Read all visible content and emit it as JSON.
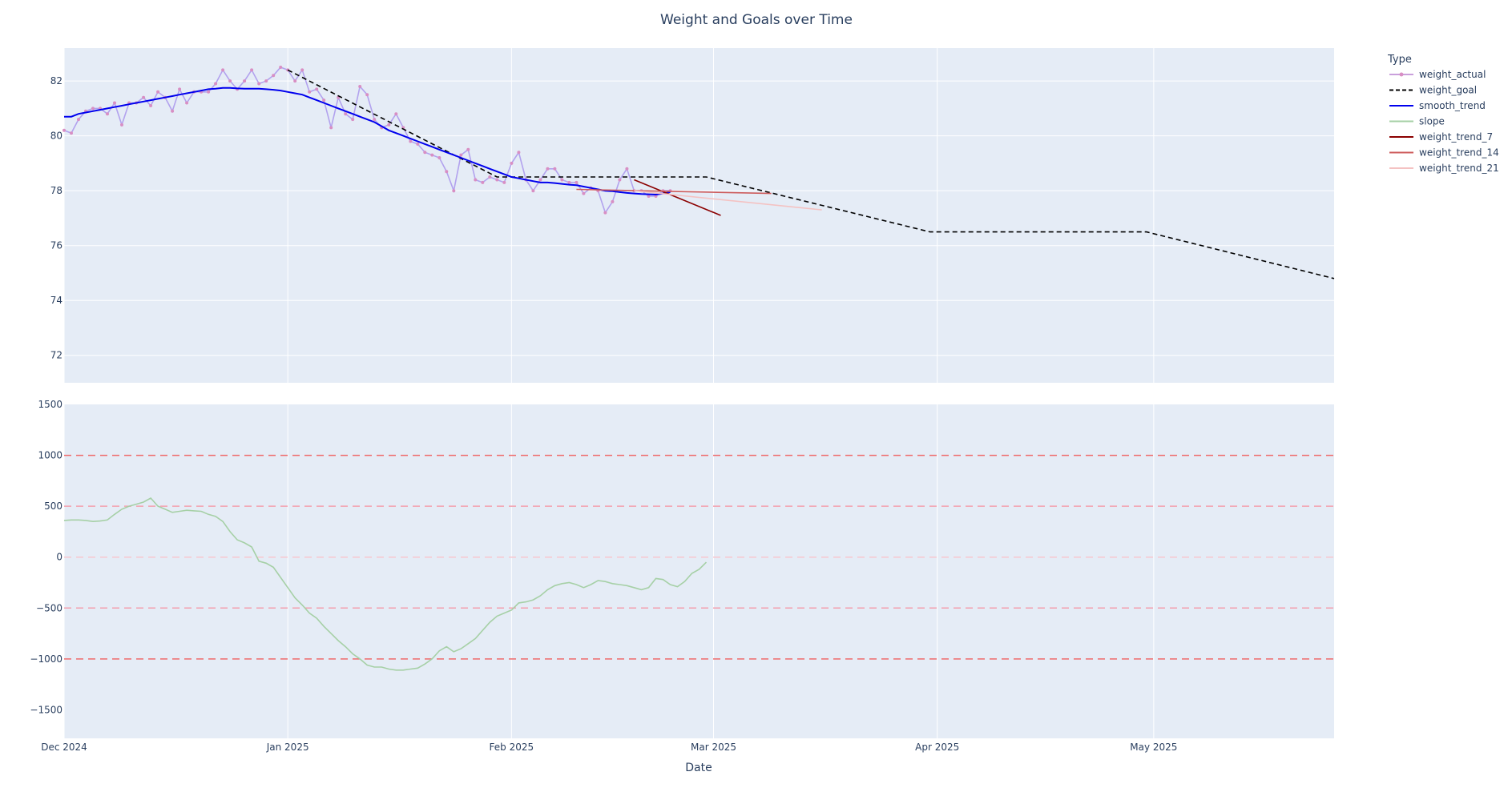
{
  "chart_data": {
    "title": "Weight and Goals over Time",
    "xlabel": "Date",
    "x_range": [
      "2024-12-01",
      "2025-05-26"
    ],
    "x_ticks": [
      {
        "date": "2024-12-01",
        "label": "Dec 2024"
      },
      {
        "date": "2025-01-01",
        "label": "Jan 2025"
      },
      {
        "date": "2025-02-01",
        "label": "Feb 2025"
      },
      {
        "date": "2025-03-01",
        "label": "Mar 2025"
      },
      {
        "date": "2025-04-01",
        "label": "Apr 2025"
      },
      {
        "date": "2025-05-01",
        "label": "May 2025"
      }
    ],
    "legend": {
      "title": "Type",
      "placement": "right",
      "items": [
        {
          "name": "weight_actual",
          "color": "#c9a0dc",
          "style": "line+marker"
        },
        {
          "name": "weight_goal",
          "color": "#000000",
          "style": "dash"
        },
        {
          "name": "smooth_trend",
          "color": "#0000ee",
          "style": "solid"
        },
        {
          "name": "slope",
          "color": "#a6d0a6",
          "style": "solid"
        },
        {
          "name": "weight_trend_7",
          "color": "#8b0000",
          "style": "solid"
        },
        {
          "name": "weight_trend_14",
          "color": "#cd5c5c",
          "style": "solid"
        },
        {
          "name": "weight_trend_21",
          "color": "#f4c2c2",
          "style": "solid"
        }
      ]
    },
    "panels": [
      {
        "type": "line",
        "ylim": [
          71,
          83.2
        ],
        "y_ticks": [
          72,
          74,
          76,
          78,
          80,
          82
        ],
        "grid": true,
        "series": [
          {
            "name": "weight_actual",
            "color": "#b2a2ee",
            "marker_color": "#d88fc4",
            "start": "2024-12-01",
            "values": [
              80.2,
              80.1,
              80.6,
              80.9,
              81.0,
              81.0,
              80.8,
              81.2,
              80.4,
              81.2,
              81.2,
              81.4,
              81.1,
              81.6,
              81.4,
              80.9,
              81.7,
              81.2,
              81.6,
              81.6,
              81.6,
              81.9,
              82.4,
              82.0,
              81.7,
              82.0,
              82.4,
              81.9,
              82.0,
              82.2,
              82.5,
              82.4,
              82.0,
              82.4,
              81.6,
              81.7,
              81.3,
              80.3,
              81.4,
              80.8,
              80.6,
              81.8,
              81.5,
              80.6,
              80.3,
              80.4,
              80.8,
              80.3,
              79.8,
              79.7,
              79.4,
              79.3,
              79.2,
              78.7,
              78.0,
              79.3,
              79.5,
              78.4,
              78.3,
              78.5,
              78.4,
              78.3,
              79.0,
              79.4,
              78.4,
              78.0,
              78.4,
              78.8,
              78.8,
              78.4,
              78.3,
              78.3,
              77.9,
              78.1,
              78.0,
              77.2,
              77.6,
              78.4,
              78.8,
              78.0,
              78.0,
              77.8,
              77.8,
              78.0,
              78.0
            ]
          },
          {
            "name": "weight_goal",
            "color": "#000000",
            "dash": true,
            "points": [
              [
                "2025-01-01",
                82.4
              ],
              [
                "2025-01-30",
                78.5
              ],
              [
                "2025-02-28",
                78.5
              ],
              [
                "2025-03-31",
                76.5
              ],
              [
                "2025-04-30",
                76.5
              ],
              [
                "2025-05-26",
                74.8
              ]
            ]
          },
          {
            "name": "smooth_trend",
            "color": "#0000ee",
            "start": "2024-12-01",
            "values": [
              80.7,
              80.7,
              80.8,
              80.85,
              80.9,
              80.95,
              81.0,
              81.05,
              81.1,
              81.15,
              81.2,
              81.25,
              81.3,
              81.35,
              81.4,
              81.45,
              81.5,
              81.55,
              81.6,
              81.65,
              81.7,
              81.72,
              81.75,
              81.75,
              81.73,
              81.72,
              81.72,
              81.72,
              81.7,
              81.68,
              81.65,
              81.6,
              81.55,
              81.5,
              81.4,
              81.3,
              81.2,
              81.1,
              81.0,
              80.9,
              80.8,
              80.7,
              80.6,
              80.5,
              80.35,
              80.2,
              80.1,
              80.0,
              79.9,
              79.8,
              79.7,
              79.6,
              79.5,
              79.4,
              79.3,
              79.2,
              79.1,
              79.0,
              78.9,
              78.8,
              78.7,
              78.6,
              78.5,
              78.45,
              78.4,
              78.35,
              78.3,
              78.3,
              78.28,
              78.25,
              78.22,
              78.2,
              78.15,
              78.1,
              78.05,
              78.0,
              77.98,
              77.95,
              77.92,
              77.9,
              77.88,
              77.87,
              77.86,
              77.9,
              77.95
            ]
          },
          {
            "name": "weight_trend_7",
            "color": "#8b0000",
            "points": [
              [
                "2025-02-18",
                78.4
              ],
              [
                "2025-03-02",
                77.1
              ]
            ]
          },
          {
            "name": "weight_trend_14",
            "color": "#cd5c5c",
            "points": [
              [
                "2025-02-10",
                78.05
              ],
              [
                "2025-03-09",
                77.9
              ]
            ]
          },
          {
            "name": "weight_trend_21",
            "color": "#f4c2c2",
            "points": [
              [
                "2025-02-18",
                78.0
              ],
              [
                "2025-03-16",
                77.3
              ]
            ]
          }
        ]
      },
      {
        "type": "line",
        "ylim": [
          -1780,
          1500
        ],
        "y_ticks": [
          -1500,
          -1000,
          -500,
          0,
          500,
          1000,
          1500
        ],
        "y_tick_labels": [
          "−1500",
          "−1000",
          "−500",
          "0",
          "500",
          "1000",
          "1500"
        ],
        "grid": true,
        "hlines": [
          {
            "y": 1000,
            "color": "#ef6a6a"
          },
          {
            "y": 500,
            "color": "#f4a0ae"
          },
          {
            "y": 0,
            "color": "#f7c6ce"
          },
          {
            "y": -500,
            "color": "#f4a0ae"
          },
          {
            "y": -1000,
            "color": "#ef6a6a"
          }
        ],
        "series": [
          {
            "name": "slope",
            "color": "#a6d0a6",
            "start": "2024-12-01",
            "values": [
              360,
              365,
              365,
              360,
              350,
              355,
              365,
              420,
              470,
              500,
              520,
              540,
              580,
              500,
              470,
              440,
              450,
              460,
              455,
              450,
              420,
              400,
              350,
              250,
              170,
              140,
              100,
              -40,
              -60,
              -100,
              -200,
              -300,
              -400,
              -470,
              -550,
              -600,
              -680,
              -750,
              -820,
              -880,
              -950,
              -1000,
              -1060,
              -1080,
              -1080,
              -1100,
              -1110,
              -1110,
              -1100,
              -1090,
              -1050,
              -1000,
              -920,
              -880,
              -930,
              -900,
              -850,
              -800,
              -720,
              -640,
              -580,
              -550,
              -520,
              -450,
              -440,
              -420,
              -380,
              -320,
              -280,
              -260,
              -250,
              -270,
              -300,
              -270,
              -230,
              -240,
              -260,
              -270,
              -280,
              -300,
              -320,
              -300,
              -210,
              -220,
              -270,
              -290,
              -240,
              -160,
              -120,
              -50
            ]
          }
        ]
      }
    ]
  }
}
